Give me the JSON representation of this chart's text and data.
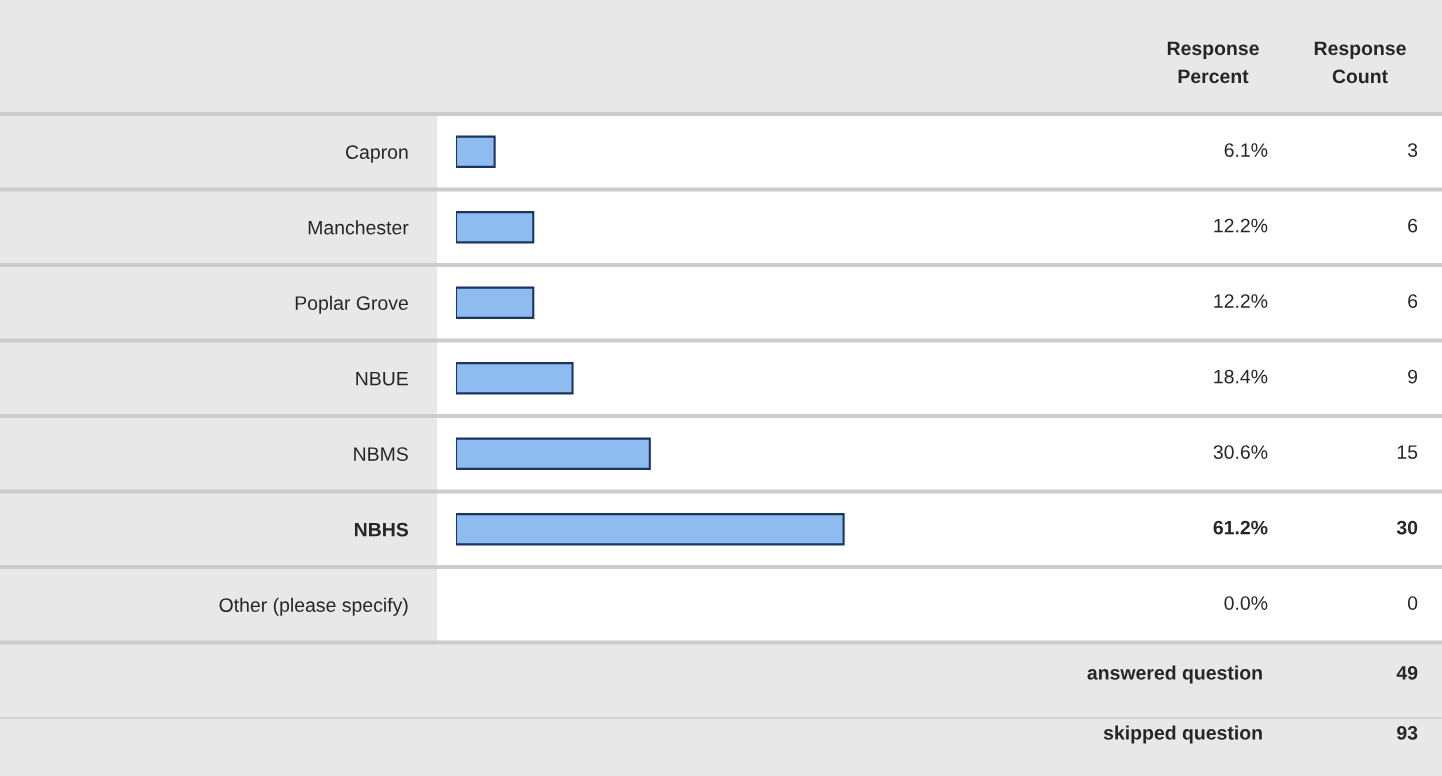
{
  "chart_data": {
    "type": "bar",
    "orientation": "horizontal",
    "categories": [
      "Capron",
      "Manchester",
      "Poplar Grove",
      "NBUE",
      "NBMS",
      "NBHS",
      "Other (please specify)"
    ],
    "values": [
      6.1,
      12.2,
      12.2,
      18.4,
      30.6,
      61.2,
      0.0
    ],
    "value_labels": [
      "6.1%",
      "12.2%",
      "12.2%",
      "18.4%",
      "30.6%",
      "61.2%",
      "0.0%"
    ],
    "color": "#8fbcf0",
    "tick_labels": "y",
    "grid": false,
    "legend": false,
    "annotations": [
      "Response\nPercent",
      "Response\nCount",
      "3",
      "6",
      "6",
      "9",
      "15",
      "30",
      "0",
      "answered question",
      "49",
      "skipped question",
      "93"
    ]
  }
}
